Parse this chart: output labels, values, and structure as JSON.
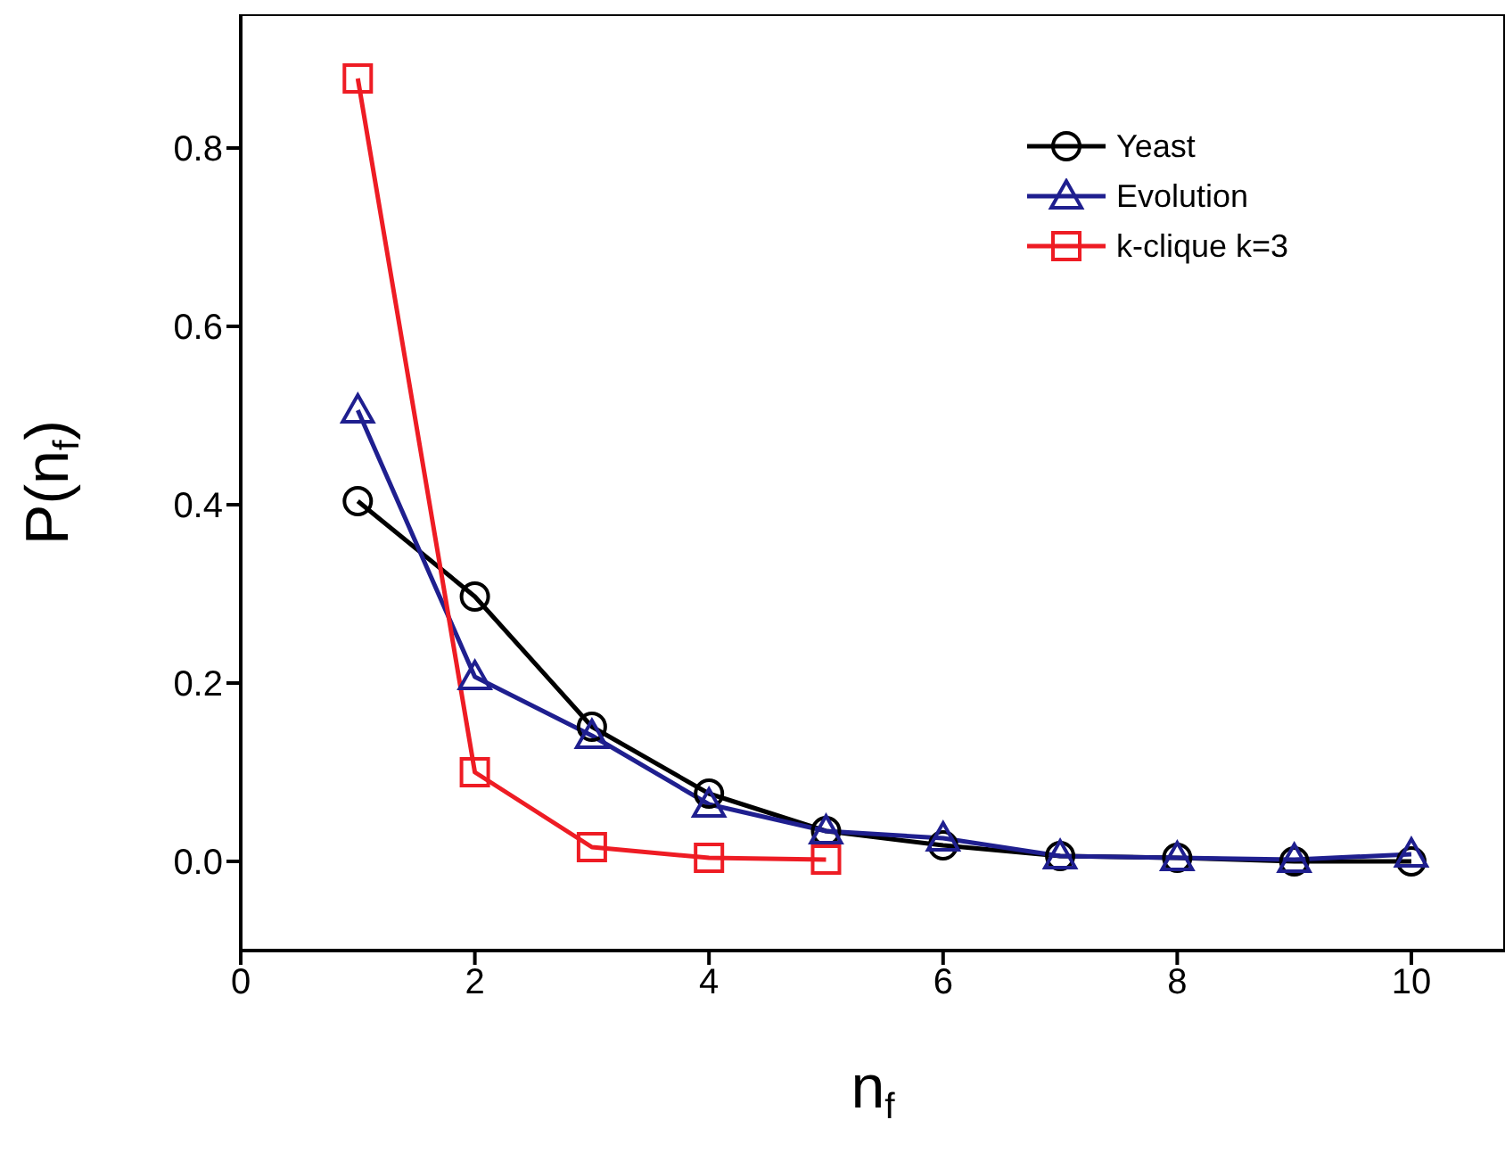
{
  "chart_data": {
    "type": "line",
    "xlabel": "n$_{f}$",
    "ylabel": "P(n$_{f}$)",
    "xlim": [
      0,
      10.8
    ],
    "xticks": [
      0,
      2,
      4,
      6,
      8,
      10
    ],
    "ylim": [
      -0.1,
      0.95
    ],
    "yticks": [
      {
        "value": 0,
        "label": "0.0"
      },
      0.2,
      0.4,
      0.6,
      0.8
    ],
    "legend": "top right",
    "grid": false,
    "line_style": "solid",
    "series": [
      {
        "name": "Yeast",
        "color": "#000000",
        "marker": "circle",
        "x": [
          1,
          2,
          3,
          4,
          5,
          6,
          7,
          8,
          9,
          10
        ],
        "values": [
          0.404,
          0.297,
          0.151,
          0.076,
          0.034,
          0.018,
          0.006,
          0.004,
          0.0,
          0.0
        ]
      },
      {
        "name": "Evolution",
        "color": "#1f1f8f",
        "marker": "triangle",
        "x": [
          1,
          2,
          3,
          4,
          5,
          6,
          7,
          8,
          9,
          10
        ],
        "values": [
          0.506,
          0.207,
          0.141,
          0.064,
          0.034,
          0.026,
          0.006,
          0.004,
          0.002,
          0.008
        ]
      },
      {
        "name": "k-clique k=3",
        "color": "#ee1c24",
        "marker": "square",
        "x": [
          1,
          2,
          3,
          4,
          5
        ],
        "values": [
          0.878,
          0.1,
          0.016,
          0.004,
          0.002
        ]
      }
    ]
  }
}
